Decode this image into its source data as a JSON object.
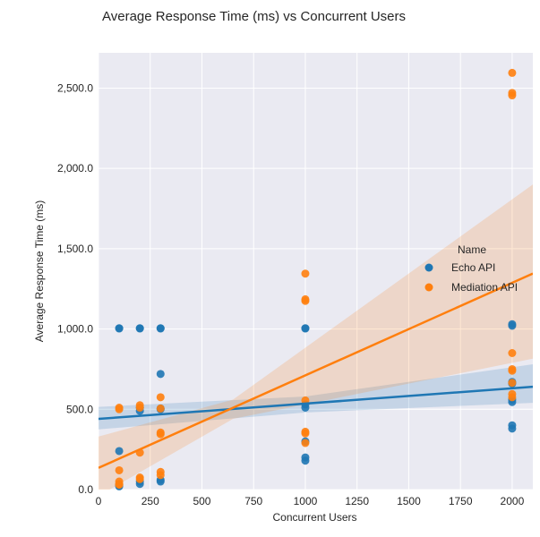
{
  "chart_data": {
    "type": "scatter",
    "title": "Average Response Time (ms) vs Concurrent Users",
    "xlabel": "Concurrent Users",
    "ylabel": "Average Response Time (ms)",
    "xlim": [
      0,
      2100
    ],
    "ylim": [
      0,
      2720
    ],
    "xticks": [
      0,
      250,
      500,
      750,
      1000,
      1250,
      1500,
      1750,
      2000
    ],
    "xtick_labels": [
      "0",
      "250",
      "500",
      "750",
      "1000",
      "1250",
      "1500",
      "1750",
      "2000"
    ],
    "yticks": [
      0,
      500,
      1000,
      1500,
      2000,
      2500
    ],
    "ytick_labels": [
      "0.0",
      "500.0",
      "1,000.0",
      "1,500.0",
      "2,000.0",
      "2,500.0"
    ],
    "grid": true,
    "legend": {
      "title": "Name",
      "placement": "right"
    },
    "series": [
      {
        "name": "Echo API",
        "color": "#1f77b4",
        "points": [
          [
            100,
            1005
          ],
          [
            100,
            1003
          ],
          [
            100,
            240
          ],
          [
            100,
            30
          ],
          [
            100,
            25
          ],
          [
            100,
            20
          ],
          [
            200,
            1005
          ],
          [
            200,
            1003
          ],
          [
            200,
            510
          ],
          [
            200,
            490
          ],
          [
            200,
            50
          ],
          [
            200,
            35
          ],
          [
            300,
            1005
          ],
          [
            300,
            1003
          ],
          [
            300,
            720
          ],
          [
            300,
            505
          ],
          [
            300,
            500
          ],
          [
            300,
            60
          ],
          [
            300,
            50
          ],
          [
            1000,
            1005
          ],
          [
            1000,
            1003
          ],
          [
            1000,
            530
          ],
          [
            1000,
            510
          ],
          [
            1000,
            300
          ],
          [
            1000,
            200
          ],
          [
            1000,
            180
          ],
          [
            2000,
            1030
          ],
          [
            2000,
            1020
          ],
          [
            2000,
            670
          ],
          [
            2000,
            660
          ],
          [
            2000,
            560
          ],
          [
            2000,
            545
          ],
          [
            2000,
            400
          ],
          [
            2000,
            380
          ]
        ],
        "regression": {
          "y_at_0": 440,
          "y_at_2100": 640
        },
        "ci_band": [
          [
            0,
            375,
            515
          ],
          [
            1000,
            480,
            580
          ],
          [
            2100,
            540,
            780
          ]
        ]
      },
      {
        "name": "Mediation API",
        "color": "#ff7f0e",
        "points": [
          [
            100,
            510
          ],
          [
            100,
            500
          ],
          [
            100,
            120
          ],
          [
            100,
            50
          ],
          [
            100,
            35
          ],
          [
            100,
            30
          ],
          [
            200,
            525
          ],
          [
            200,
            510
          ],
          [
            200,
            230
          ],
          [
            200,
            75
          ],
          [
            200,
            65
          ],
          [
            300,
            575
          ],
          [
            300,
            505
          ],
          [
            300,
            355
          ],
          [
            300,
            345
          ],
          [
            300,
            110
          ],
          [
            300,
            90
          ],
          [
            1000,
            1345
          ],
          [
            1000,
            1185
          ],
          [
            1000,
            1175
          ],
          [
            1000,
            555
          ],
          [
            1000,
            360
          ],
          [
            1000,
            350
          ],
          [
            1000,
            290
          ],
          [
            2000,
            2595
          ],
          [
            2000,
            2470
          ],
          [
            2000,
            2455
          ],
          [
            2000,
            850
          ],
          [
            2000,
            750
          ],
          [
            2000,
            740
          ],
          [
            2000,
            665
          ],
          [
            2000,
            595
          ],
          [
            2000,
            575
          ]
        ],
        "regression": {
          "y_at_0": 135,
          "y_at_2100": 1345
        },
        "ci_band": [
          [
            0,
            -40,
            330
          ],
          [
            650,
            440,
            560
          ],
          [
            2100,
            815,
            1900
          ]
        ]
      }
    ]
  }
}
